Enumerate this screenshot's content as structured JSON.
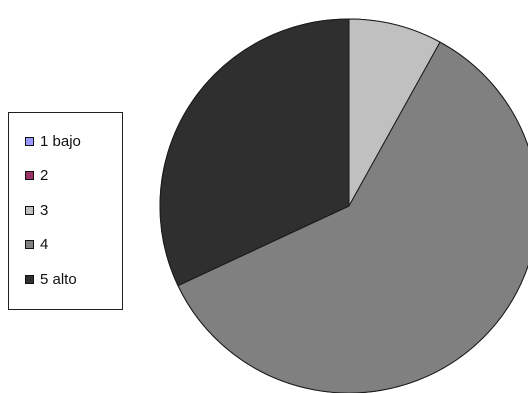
{
  "chart_data": {
    "type": "pie",
    "categories": [
      "1 bajo",
      "2",
      "3",
      "4",
      "5 alto"
    ],
    "values": [
      0,
      0,
      8,
      60,
      32
    ],
    "colors": [
      "#9999ff",
      "#993366",
      "#c0c0c0",
      "#808080",
      "#2f2f2f"
    ],
    "legend_position": "left",
    "title": ""
  }
}
